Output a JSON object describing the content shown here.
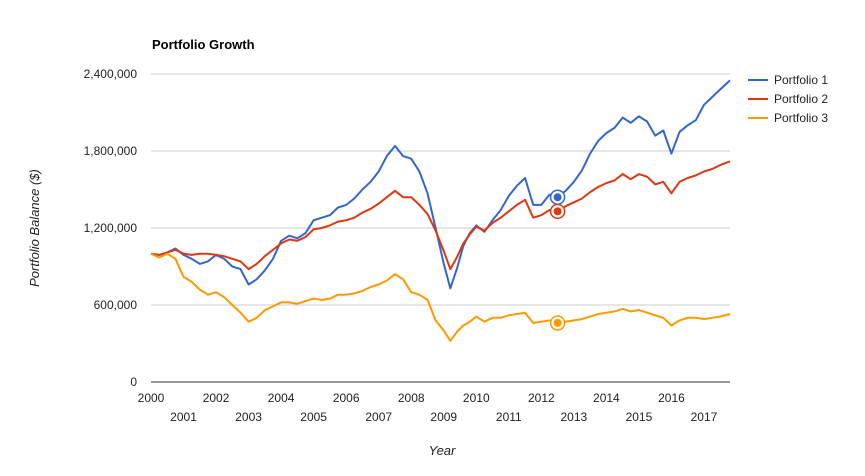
{
  "chart_data": {
    "type": "line",
    "title": "Portfolio Growth",
    "xlabel": "Year",
    "ylabel": "Portfolio Balance ($)",
    "xlim": [
      2000,
      2017.8
    ],
    "ylim": [
      0,
      2400000
    ],
    "y_ticks": [
      0,
      600000,
      1200000,
      1800000,
      2400000
    ],
    "y_tick_labels": [
      "0",
      "600,000",
      "1,200,000",
      "1,800,000",
      "2,400,000"
    ],
    "x_ticks_top": [
      2000,
      2002,
      2004,
      2006,
      2008,
      2010,
      2012,
      2014,
      2016
    ],
    "x_ticks_bottom": [
      2001,
      2003,
      2005,
      2007,
      2009,
      2011,
      2013,
      2015,
      2017
    ],
    "grid": true,
    "legend": "right",
    "marker_x": 2012.5,
    "series": [
      {
        "name": "Portfolio 1",
        "color": "#3366cc",
        "points": [
          [
            2000.0,
            1000000
          ],
          [
            2000.25,
            990000
          ],
          [
            2000.5,
            1010000
          ],
          [
            2000.75,
            1040000
          ],
          [
            2001.0,
            990000
          ],
          [
            2001.25,
            960000
          ],
          [
            2001.5,
            920000
          ],
          [
            2001.75,
            940000
          ],
          [
            2002.0,
            990000
          ],
          [
            2002.25,
            960000
          ],
          [
            2002.5,
            900000
          ],
          [
            2002.75,
            880000
          ],
          [
            2003.0,
            760000
          ],
          [
            2003.25,
            800000
          ],
          [
            2003.5,
            870000
          ],
          [
            2003.75,
            960000
          ],
          [
            2004.0,
            1100000
          ],
          [
            2004.25,
            1140000
          ],
          [
            2004.5,
            1120000
          ],
          [
            2004.75,
            1160000
          ],
          [
            2005.0,
            1260000
          ],
          [
            2005.25,
            1280000
          ],
          [
            2005.5,
            1300000
          ],
          [
            2005.75,
            1360000
          ],
          [
            2006.0,
            1380000
          ],
          [
            2006.25,
            1430000
          ],
          [
            2006.5,
            1500000
          ],
          [
            2006.75,
            1560000
          ],
          [
            2007.0,
            1640000
          ],
          [
            2007.25,
            1760000
          ],
          [
            2007.5,
            1840000
          ],
          [
            2007.75,
            1760000
          ],
          [
            2008.0,
            1740000
          ],
          [
            2008.25,
            1640000
          ],
          [
            2008.5,
            1470000
          ],
          [
            2008.75,
            1200000
          ],
          [
            2009.0,
            920000
          ],
          [
            2009.2,
            730000
          ],
          [
            2009.4,
            880000
          ],
          [
            2009.6,
            1060000
          ],
          [
            2009.8,
            1160000
          ],
          [
            2010.0,
            1220000
          ],
          [
            2010.25,
            1170000
          ],
          [
            2010.5,
            1260000
          ],
          [
            2010.75,
            1340000
          ],
          [
            2011.0,
            1450000
          ],
          [
            2011.25,
            1530000
          ],
          [
            2011.5,
            1590000
          ],
          [
            2011.75,
            1380000
          ],
          [
            2012.0,
            1380000
          ],
          [
            2012.25,
            1460000
          ],
          [
            2012.5,
            1440000
          ],
          [
            2012.75,
            1490000
          ],
          [
            2013.0,
            1560000
          ],
          [
            2013.25,
            1650000
          ],
          [
            2013.5,
            1780000
          ],
          [
            2013.75,
            1880000
          ],
          [
            2014.0,
            1940000
          ],
          [
            2014.25,
            1980000
          ],
          [
            2014.5,
            2060000
          ],
          [
            2014.75,
            2020000
          ],
          [
            2015.0,
            2070000
          ],
          [
            2015.25,
            2030000
          ],
          [
            2015.5,
            1920000
          ],
          [
            2015.75,
            1960000
          ],
          [
            2016.0,
            1780000
          ],
          [
            2016.25,
            1950000
          ],
          [
            2016.5,
            2000000
          ],
          [
            2016.75,
            2040000
          ],
          [
            2017.0,
            2160000
          ],
          [
            2017.25,
            2220000
          ],
          [
            2017.5,
            2280000
          ],
          [
            2017.8,
            2350000
          ]
        ]
      },
      {
        "name": "Portfolio 2",
        "color": "#dc3912",
        "points": [
          [
            2000.0,
            1000000
          ],
          [
            2000.25,
            990000
          ],
          [
            2000.5,
            1010000
          ],
          [
            2000.75,
            1030000
          ],
          [
            2001.0,
            1000000
          ],
          [
            2001.25,
            990000
          ],
          [
            2001.5,
            1000000
          ],
          [
            2001.75,
            1000000
          ],
          [
            2002.0,
            990000
          ],
          [
            2002.25,
            980000
          ],
          [
            2002.5,
            960000
          ],
          [
            2002.75,
            940000
          ],
          [
            2003.0,
            880000
          ],
          [
            2003.25,
            920000
          ],
          [
            2003.5,
            980000
          ],
          [
            2003.75,
            1030000
          ],
          [
            2004.0,
            1080000
          ],
          [
            2004.25,
            1110000
          ],
          [
            2004.5,
            1100000
          ],
          [
            2004.75,
            1130000
          ],
          [
            2005.0,
            1190000
          ],
          [
            2005.25,
            1200000
          ],
          [
            2005.5,
            1220000
          ],
          [
            2005.75,
            1250000
          ],
          [
            2006.0,
            1260000
          ],
          [
            2006.25,
            1280000
          ],
          [
            2006.5,
            1320000
          ],
          [
            2006.75,
            1350000
          ],
          [
            2007.0,
            1390000
          ],
          [
            2007.25,
            1440000
          ],
          [
            2007.5,
            1490000
          ],
          [
            2007.75,
            1440000
          ],
          [
            2008.0,
            1440000
          ],
          [
            2008.25,
            1380000
          ],
          [
            2008.5,
            1310000
          ],
          [
            2008.75,
            1180000
          ],
          [
            2009.0,
            1020000
          ],
          [
            2009.2,
            880000
          ],
          [
            2009.4,
            970000
          ],
          [
            2009.6,
            1080000
          ],
          [
            2009.8,
            1150000
          ],
          [
            2010.0,
            1210000
          ],
          [
            2010.25,
            1180000
          ],
          [
            2010.5,
            1240000
          ],
          [
            2010.75,
            1280000
          ],
          [
            2011.0,
            1330000
          ],
          [
            2011.25,
            1380000
          ],
          [
            2011.5,
            1420000
          ],
          [
            2011.75,
            1280000
          ],
          [
            2012.0,
            1300000
          ],
          [
            2012.25,
            1340000
          ],
          [
            2012.5,
            1330000
          ],
          [
            2012.75,
            1370000
          ],
          [
            2013.0,
            1400000
          ],
          [
            2013.25,
            1430000
          ],
          [
            2013.5,
            1480000
          ],
          [
            2013.75,
            1520000
          ],
          [
            2014.0,
            1550000
          ],
          [
            2014.25,
            1570000
          ],
          [
            2014.5,
            1620000
          ],
          [
            2014.75,
            1580000
          ],
          [
            2015.0,
            1620000
          ],
          [
            2015.25,
            1600000
          ],
          [
            2015.5,
            1540000
          ],
          [
            2015.75,
            1560000
          ],
          [
            2016.0,
            1470000
          ],
          [
            2016.25,
            1560000
          ],
          [
            2016.5,
            1590000
          ],
          [
            2016.75,
            1610000
          ],
          [
            2017.0,
            1640000
          ],
          [
            2017.25,
            1660000
          ],
          [
            2017.5,
            1690000
          ],
          [
            2017.8,
            1720000
          ]
        ]
      },
      {
        "name": "Portfolio 3",
        "color": "#ff9900",
        "points": [
          [
            2000.0,
            1000000
          ],
          [
            2000.25,
            970000
          ],
          [
            2000.5,
            1000000
          ],
          [
            2000.75,
            960000
          ],
          [
            2001.0,
            820000
          ],
          [
            2001.25,
            780000
          ],
          [
            2001.5,
            720000
          ],
          [
            2001.75,
            680000
          ],
          [
            2002.0,
            700000
          ],
          [
            2002.25,
            660000
          ],
          [
            2002.5,
            600000
          ],
          [
            2002.75,
            540000
          ],
          [
            2003.0,
            470000
          ],
          [
            2003.25,
            500000
          ],
          [
            2003.5,
            560000
          ],
          [
            2003.75,
            590000
          ],
          [
            2004.0,
            620000
          ],
          [
            2004.25,
            620000
          ],
          [
            2004.5,
            610000
          ],
          [
            2004.75,
            630000
          ],
          [
            2005.0,
            650000
          ],
          [
            2005.25,
            640000
          ],
          [
            2005.5,
            650000
          ],
          [
            2005.75,
            680000
          ],
          [
            2006.0,
            680000
          ],
          [
            2006.25,
            690000
          ],
          [
            2006.5,
            710000
          ],
          [
            2006.75,
            740000
          ],
          [
            2007.0,
            760000
          ],
          [
            2007.25,
            790000
          ],
          [
            2007.5,
            840000
          ],
          [
            2007.75,
            800000
          ],
          [
            2008.0,
            700000
          ],
          [
            2008.25,
            680000
          ],
          [
            2008.5,
            640000
          ],
          [
            2008.75,
            480000
          ],
          [
            2009.0,
            400000
          ],
          [
            2009.2,
            320000
          ],
          [
            2009.4,
            390000
          ],
          [
            2009.6,
            440000
          ],
          [
            2009.8,
            470000
          ],
          [
            2010.0,
            510000
          ],
          [
            2010.25,
            470000
          ],
          [
            2010.5,
            500000
          ],
          [
            2010.75,
            500000
          ],
          [
            2011.0,
            520000
          ],
          [
            2011.25,
            530000
          ],
          [
            2011.5,
            540000
          ],
          [
            2011.75,
            460000
          ],
          [
            2012.0,
            470000
          ],
          [
            2012.25,
            480000
          ],
          [
            2012.5,
            460000
          ],
          [
            2012.75,
            470000
          ],
          [
            2013.0,
            480000
          ],
          [
            2013.25,
            490000
          ],
          [
            2013.5,
            510000
          ],
          [
            2013.75,
            530000
          ],
          [
            2014.0,
            540000
          ],
          [
            2014.25,
            550000
          ],
          [
            2014.5,
            570000
          ],
          [
            2014.75,
            550000
          ],
          [
            2015.0,
            560000
          ],
          [
            2015.25,
            540000
          ],
          [
            2015.5,
            520000
          ],
          [
            2015.75,
            500000
          ],
          [
            2016.0,
            440000
          ],
          [
            2016.25,
            480000
          ],
          [
            2016.5,
            500000
          ],
          [
            2016.75,
            500000
          ],
          [
            2017.0,
            490000
          ],
          [
            2017.25,
            500000
          ],
          [
            2017.5,
            510000
          ],
          [
            2017.8,
            530000
          ]
        ]
      }
    ]
  }
}
